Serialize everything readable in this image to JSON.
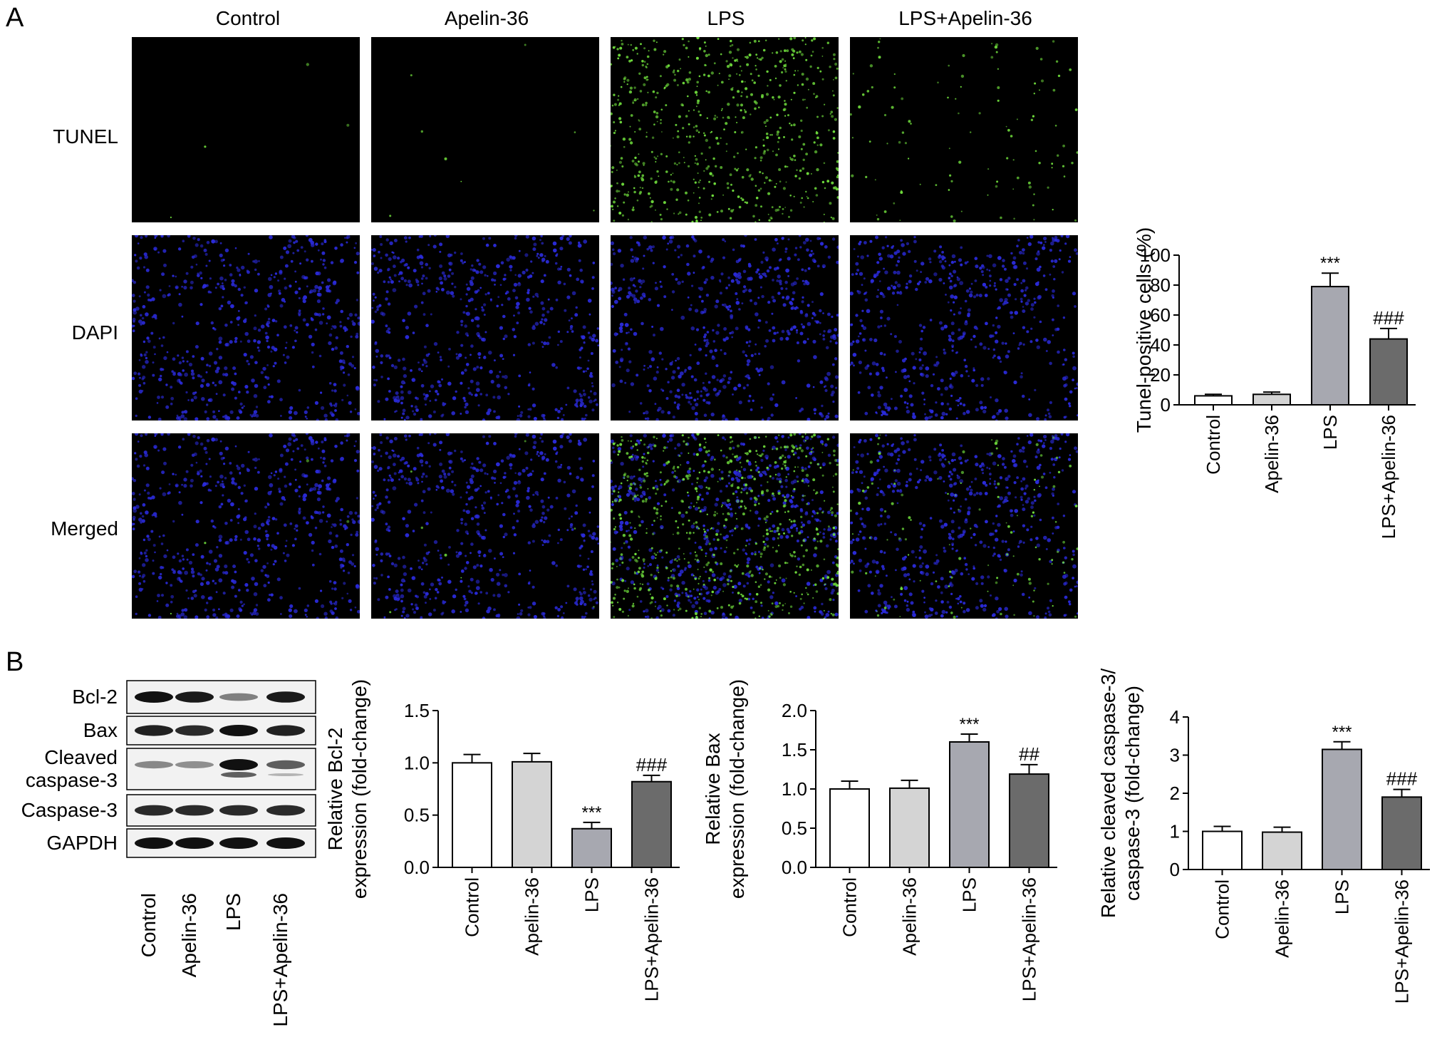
{
  "panel_labels": {
    "a": "A",
    "b": "B"
  },
  "groups": [
    "Control",
    "Apelin-36",
    "LPS",
    "LPS+Apelin-36"
  ],
  "stain_rows": [
    "TUNEL",
    "DAPI",
    "Merged"
  ],
  "western_blot": {
    "bands": [
      "Bcl-2",
      "Bax",
      "Cleaved caspase-3",
      "Caspase-3",
      "GAPDH"
    ],
    "band_label_lines": [
      [
        "Bcl-2"
      ],
      [
        "Bax"
      ],
      [
        "Cleaved",
        "caspase-3"
      ],
      [
        "Caspase-3"
      ],
      [
        "GAPDH"
      ]
    ],
    "lanes": [
      "Control",
      "Apelin-36",
      "LPS",
      "LPS+Apelin-36"
    ],
    "band_intensity": [
      [
        1.0,
        0.95,
        0.35,
        0.95
      ],
      [
        0.9,
        0.85,
        1.0,
        0.9
      ],
      [
        0.3,
        0.25,
        1.0,
        0.55
      ],
      [
        0.85,
        0.85,
        0.85,
        0.85
      ],
      [
        1.0,
        1.0,
        1.0,
        1.0
      ]
    ]
  },
  "colors": {
    "bar_fills": [
      "#ffffff",
      "#d4d4d4",
      "#a7a8b0",
      "#6b6b6b"
    ],
    "tunel": "#6fdc3c",
    "dapi": "#2a2ad8",
    "background": "#000000"
  },
  "chart_data": [
    {
      "id": "tunel",
      "type": "bar",
      "categories": [
        "Control",
        "Apelin-36",
        "LPS",
        "LPS+Apelin-36"
      ],
      "values": [
        6,
        7,
        79,
        44
      ],
      "errors": [
        1,
        1.5,
        9,
        7
      ],
      "annotations": [
        "",
        "",
        "***",
        "###"
      ],
      "ylabel": "Tunel-positive cells (%)",
      "ylim": [
        0,
        100
      ],
      "yticks": [
        0,
        20,
        40,
        60,
        80,
        100
      ],
      "ytick_labels": [
        "0",
        "20",
        "40",
        "60",
        "80",
        "100"
      ]
    },
    {
      "id": "bcl2",
      "type": "bar",
      "categories": [
        "Control",
        "Apelin-36",
        "LPS",
        "LPS+Apelin-36"
      ],
      "values": [
        1.0,
        1.01,
        0.37,
        0.82
      ],
      "errors": [
        0.08,
        0.08,
        0.06,
        0.06
      ],
      "annotations": [
        "",
        "",
        "***",
        "###"
      ],
      "ylabel": "Relative Bcl-2 expression (fold-change)",
      "ylabel_lines": [
        "Relative Bcl-2",
        "expression (fold-change)"
      ],
      "ylim": [
        0,
        1.5
      ],
      "yticks": [
        0,
        0.5,
        1.0,
        1.5
      ],
      "ytick_labels": [
        "0.0",
        "0.5",
        "1.0",
        "1.5"
      ]
    },
    {
      "id": "bax",
      "type": "bar",
      "categories": [
        "Control",
        "Apelin-36",
        "LPS",
        "LPS+Apelin-36"
      ],
      "values": [
        1.0,
        1.01,
        1.6,
        1.19
      ],
      "errors": [
        0.1,
        0.1,
        0.1,
        0.12
      ],
      "annotations": [
        "",
        "",
        "***",
        "##"
      ],
      "ylabel": "Relative Bax expression (fold-change)",
      "ylabel_lines": [
        "Relative Bax",
        "expression (fold-change)"
      ],
      "ylim": [
        0,
        2.0
      ],
      "yticks": [
        0,
        0.5,
        1.0,
        1.5,
        2.0
      ],
      "ytick_labels": [
        "0.0",
        "0.5",
        "1.0",
        "1.5",
        "2.0"
      ]
    },
    {
      "id": "caspase",
      "type": "bar",
      "categories": [
        "Control",
        "Apelin-36",
        "LPS",
        "LPS+Apelin-36"
      ],
      "values": [
        1.0,
        0.98,
        3.15,
        1.9
      ],
      "errors": [
        0.13,
        0.13,
        0.2,
        0.2
      ],
      "annotations": [
        "",
        "",
        "***",
        "###"
      ],
      "ylabel": "Relative cleaved caspase-3/ caspase-3 (fold-change)",
      "ylabel_lines": [
        "Relative cleaved caspase-3/",
        "caspase-3 (fold-change)"
      ],
      "ylim": [
        0,
        4
      ],
      "yticks": [
        0,
        1,
        2,
        3,
        4
      ],
      "ytick_labels": [
        "0",
        "1",
        "2",
        "3",
        "4"
      ]
    }
  ]
}
